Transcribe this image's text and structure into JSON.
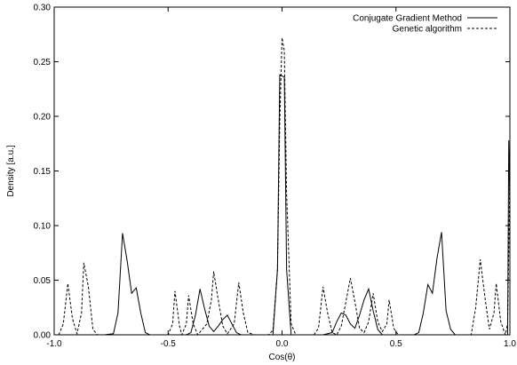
{
  "chart_data": {
    "type": "line",
    "title": "",
    "xlabel": "Cos(θ)",
    "ylabel": "Density [a.u.]",
    "xlim": [
      -1.0,
      1.0
    ],
    "ylim": [
      0.0,
      0.3
    ],
    "x_ticks": [
      -1.0,
      -0.5,
      0.0,
      0.5,
      1.0
    ],
    "x_tick_labels": [
      "-1.0",
      "-0.5",
      "0.0",
      "0.5",
      "1.0"
    ],
    "y_ticks": [
      0.0,
      0.05,
      0.1,
      0.15,
      0.2,
      0.25,
      0.3
    ],
    "y_tick_labels": [
      "0.00",
      "0.05",
      "0.10",
      "0.15",
      "0.20",
      "0.25",
      "0.30"
    ],
    "grid": false,
    "legend_position": "top-right",
    "series": [
      {
        "name": "Conjugate Gradient Method",
        "style": "solid",
        "color": "#000000",
        "points": [
          [
            -1.0,
            0.0
          ],
          [
            -0.78,
            0.0
          ],
          [
            -0.74,
            0.001
          ],
          [
            -0.72,
            0.02
          ],
          [
            -0.7,
            0.093
          ],
          [
            -0.68,
            0.068
          ],
          [
            -0.66,
            0.038
          ],
          [
            -0.64,
            0.043
          ],
          [
            -0.62,
            0.02
          ],
          [
            -0.6,
            0.002
          ],
          [
            -0.58,
            0.0
          ],
          [
            -0.42,
            0.0
          ],
          [
            -0.4,
            0.002
          ],
          [
            -0.38,
            0.018
          ],
          [
            -0.36,
            0.042
          ],
          [
            -0.34,
            0.024
          ],
          [
            -0.32,
            0.008
          ],
          [
            -0.3,
            0.003
          ],
          [
            -0.28,
            0.008
          ],
          [
            -0.26,
            0.014
          ],
          [
            -0.24,
            0.018
          ],
          [
            -0.22,
            0.01
          ],
          [
            -0.2,
            0.002
          ],
          [
            -0.18,
            0.0
          ],
          [
            -0.04,
            0.0
          ],
          [
            -0.02,
            0.06
          ],
          [
            -0.01,
            0.238
          ],
          [
            0.01,
            0.236
          ],
          [
            0.02,
            0.06
          ],
          [
            0.04,
            0.0
          ],
          [
            0.18,
            0.0
          ],
          [
            0.22,
            0.002
          ],
          [
            0.24,
            0.012
          ],
          [
            0.26,
            0.02
          ],
          [
            0.28,
            0.018
          ],
          [
            0.3,
            0.01
          ],
          [
            0.32,
            0.006
          ],
          [
            0.34,
            0.018
          ],
          [
            0.36,
            0.032
          ],
          [
            0.38,
            0.042
          ],
          [
            0.4,
            0.022
          ],
          [
            0.42,
            0.005
          ],
          [
            0.44,
            0.0
          ],
          [
            0.58,
            0.0
          ],
          [
            0.6,
            0.002
          ],
          [
            0.62,
            0.02
          ],
          [
            0.64,
            0.046
          ],
          [
            0.66,
            0.038
          ],
          [
            0.68,
            0.07
          ],
          [
            0.7,
            0.094
          ],
          [
            0.72,
            0.022
          ],
          [
            0.74,
            0.005
          ],
          [
            0.76,
            0.0
          ],
          [
            0.99,
            0.0
          ],
          [
            0.995,
            0.178
          ],
          [
            1.0,
            0.12
          ]
        ]
      },
      {
        "name": "Genetic algorithm",
        "style": "dashed",
        "color": "#000000",
        "points": [
          [
            -1.0,
            0.0
          ],
          [
            -0.98,
            0.0
          ],
          [
            -0.96,
            0.01
          ],
          [
            -0.94,
            0.047
          ],
          [
            -0.92,
            0.015
          ],
          [
            -0.9,
            0.001
          ],
          [
            -0.88,
            0.02
          ],
          [
            -0.87,
            0.066
          ],
          [
            -0.85,
            0.044
          ],
          [
            -0.83,
            0.005
          ],
          [
            -0.81,
            0.0
          ],
          [
            -0.5,
            0.0
          ],
          [
            -0.48,
            0.01
          ],
          [
            -0.47,
            0.04
          ],
          [
            -0.45,
            0.008
          ],
          [
            -0.44,
            0.0
          ],
          [
            -0.42,
            0.01
          ],
          [
            -0.41,
            0.036
          ],
          [
            -0.39,
            0.01
          ],
          [
            -0.37,
            0.0
          ],
          [
            -0.33,
            0.01
          ],
          [
            -0.31,
            0.032
          ],
          [
            -0.3,
            0.058
          ],
          [
            -0.28,
            0.032
          ],
          [
            -0.26,
            0.008
          ],
          [
            -0.24,
            0.001
          ],
          [
            -0.21,
            0.01
          ],
          [
            -0.19,
            0.048
          ],
          [
            -0.17,
            0.02
          ],
          [
            -0.15,
            0.002
          ],
          [
            -0.12,
            0.0
          ],
          [
            -0.06,
            0.0
          ],
          [
            -0.04,
            0.004
          ],
          [
            -0.02,
            0.06
          ],
          [
            -0.01,
            0.195
          ],
          [
            0.0,
            0.272
          ],
          [
            0.01,
            0.26
          ],
          [
            0.02,
            0.13
          ],
          [
            0.04,
            0.01
          ],
          [
            0.06,
            0.0
          ],
          [
            0.14,
            0.0
          ],
          [
            0.16,
            0.006
          ],
          [
            0.18,
            0.044
          ],
          [
            0.2,
            0.02
          ],
          [
            0.22,
            0.002
          ],
          [
            0.24,
            0.0
          ],
          [
            0.26,
            0.008
          ],
          [
            0.28,
            0.03
          ],
          [
            0.3,
            0.052
          ],
          [
            0.32,
            0.03
          ],
          [
            0.34,
            0.006
          ],
          [
            0.36,
            0.002
          ],
          [
            0.38,
            0.012
          ],
          [
            0.4,
            0.038
          ],
          [
            0.42,
            0.012
          ],
          [
            0.44,
            0.003
          ],
          [
            0.46,
            0.01
          ],
          [
            0.47,
            0.032
          ],
          [
            0.49,
            0.006
          ],
          [
            0.51,
            0.0
          ],
          [
            0.83,
            0.0
          ],
          [
            0.85,
            0.025
          ],
          [
            0.87,
            0.069
          ],
          [
            0.89,
            0.035
          ],
          [
            0.91,
            0.005
          ],
          [
            0.93,
            0.02
          ],
          [
            0.94,
            0.047
          ],
          [
            0.96,
            0.012
          ],
          [
            0.98,
            0.0
          ],
          [
            0.99,
            0.01
          ],
          [
            1.0,
            0.15
          ]
        ]
      }
    ]
  }
}
